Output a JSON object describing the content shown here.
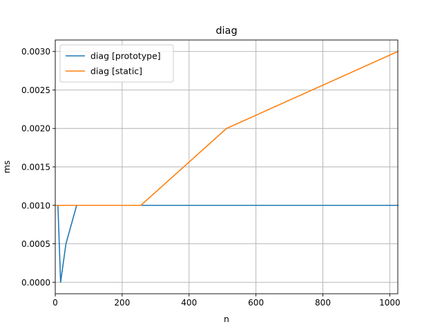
{
  "chart_data": {
    "type": "line",
    "title": "diag",
    "xlabel": "n",
    "ylabel": "ms",
    "xlim": [
      0,
      1024
    ],
    "ylim": [
      -0.00015,
      0.00315
    ],
    "xticks": [
      0,
      200,
      400,
      600,
      800,
      1000
    ],
    "xtick_labels": [
      "0",
      "200",
      "400",
      "600",
      "800",
      "1000"
    ],
    "yticks": [
      0.0,
      0.0005,
      0.001,
      0.0015,
      0.002,
      0.0025,
      0.003
    ],
    "ytick_labels": [
      "0.0000",
      "0.0005",
      "0.0010",
      "0.0015",
      "0.0020",
      "0.0025",
      "0.0030"
    ],
    "grid": true,
    "legend_position": "top-left",
    "series": [
      {
        "name": "diag [prototype]",
        "color": "#1f77b4",
        "x": [
          1,
          2,
          4,
          8,
          16,
          32,
          64,
          128,
          256,
          512,
          1024
        ],
        "y": [
          0.001,
          0.001,
          0.001,
          0.001,
          0.0,
          0.0005,
          0.001,
          0.001,
          0.001,
          0.001,
          0.001
        ]
      },
      {
        "name": "diag [static]",
        "color": "#ff7f0e",
        "x": [
          1,
          2,
          4,
          8,
          16,
          32,
          64,
          128,
          256,
          512,
          1024
        ],
        "y": [
          0.001,
          0.001,
          0.001,
          0.001,
          0.001,
          0.001,
          0.001,
          0.001,
          0.001,
          0.002,
          0.003
        ]
      }
    ]
  }
}
